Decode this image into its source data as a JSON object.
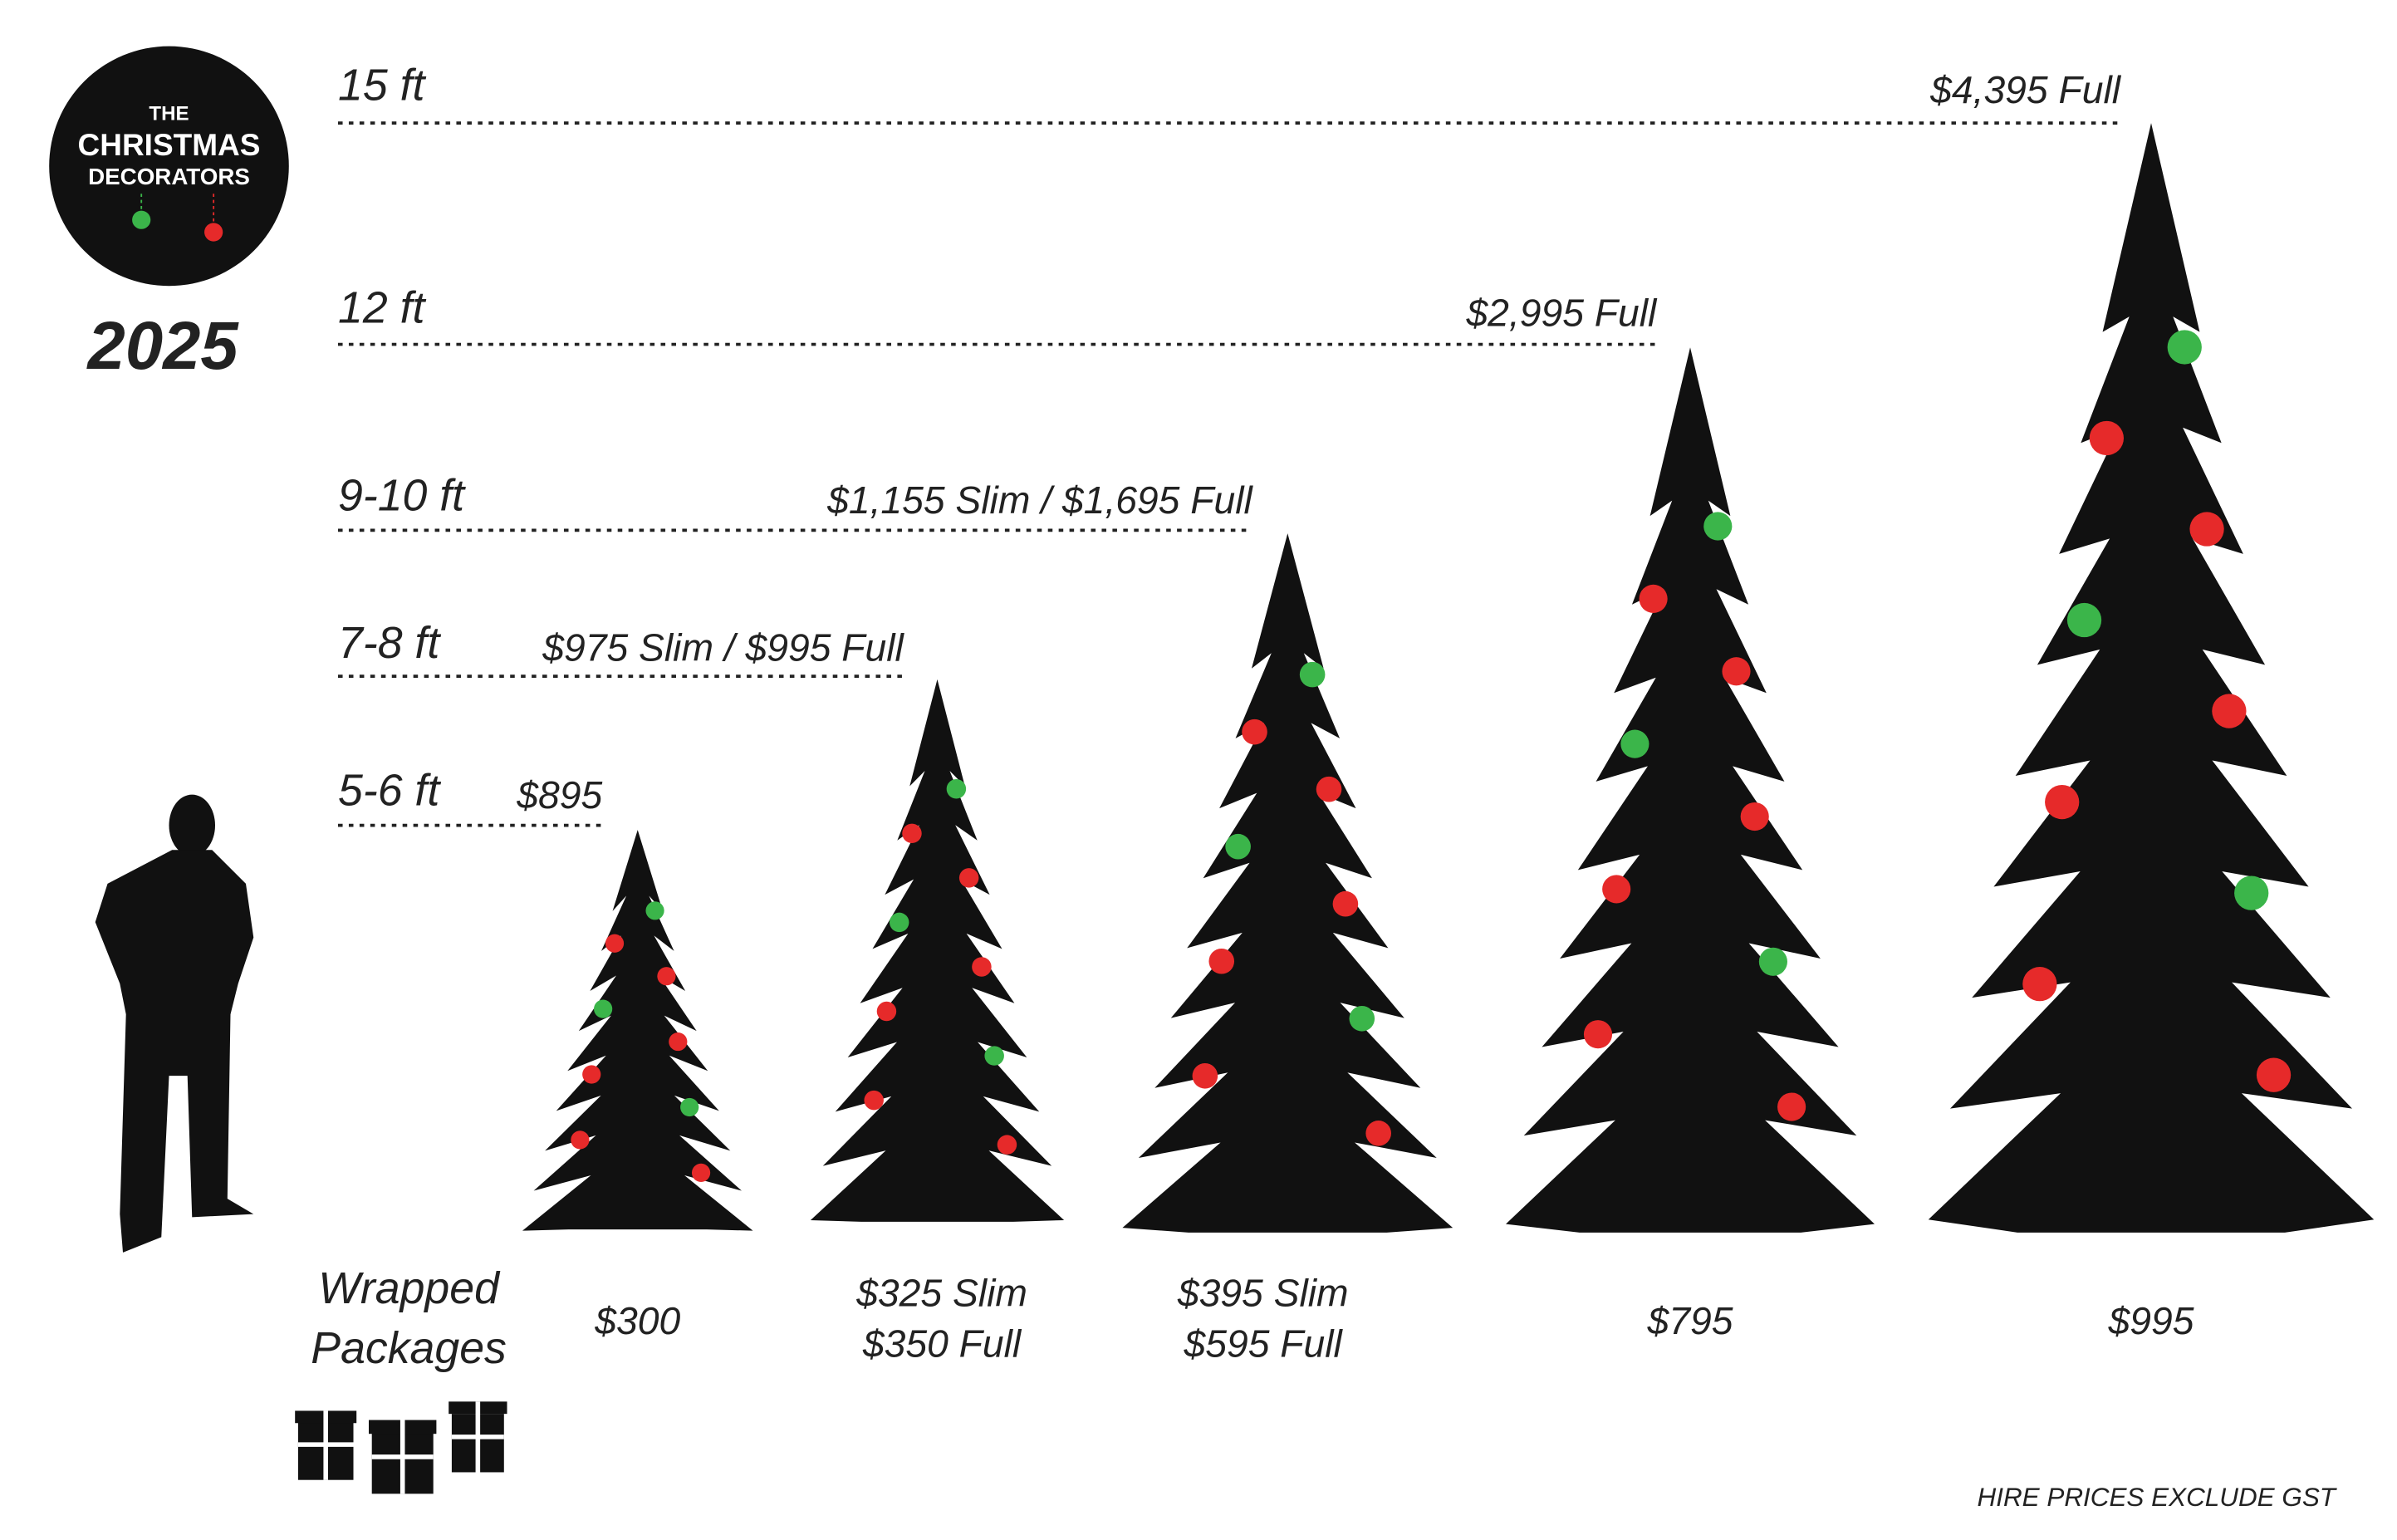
{
  "logo": {
    "lines": [
      "THE",
      "CHRISTMAS",
      "DECORATORS"
    ],
    "year": "2025"
  },
  "heights": [
    {
      "label": "15 ft",
      "price": "$4,395 Full"
    },
    {
      "label": "12 ft",
      "price": "$2,995 Full"
    },
    {
      "label": "9-10 ft",
      "price": "$1,155 Slim / $1,695 Full"
    },
    {
      "label": "7-8 ft",
      "price": "$975 Slim / $995 Full"
    },
    {
      "label": "5-6 ft",
      "price": "$895"
    }
  ],
  "packages": {
    "label": [
      "Wrapped",
      "Packages"
    ],
    "prices": [
      [
        "$300"
      ],
      [
        "$325 Slim",
        "$350 Full"
      ],
      [
        "$395 Slim",
        "$595 Full"
      ],
      [
        "$795"
      ],
      [
        "$995"
      ]
    ]
  },
  "footnote": "HIRE PRICES EXCLUDE GST"
}
